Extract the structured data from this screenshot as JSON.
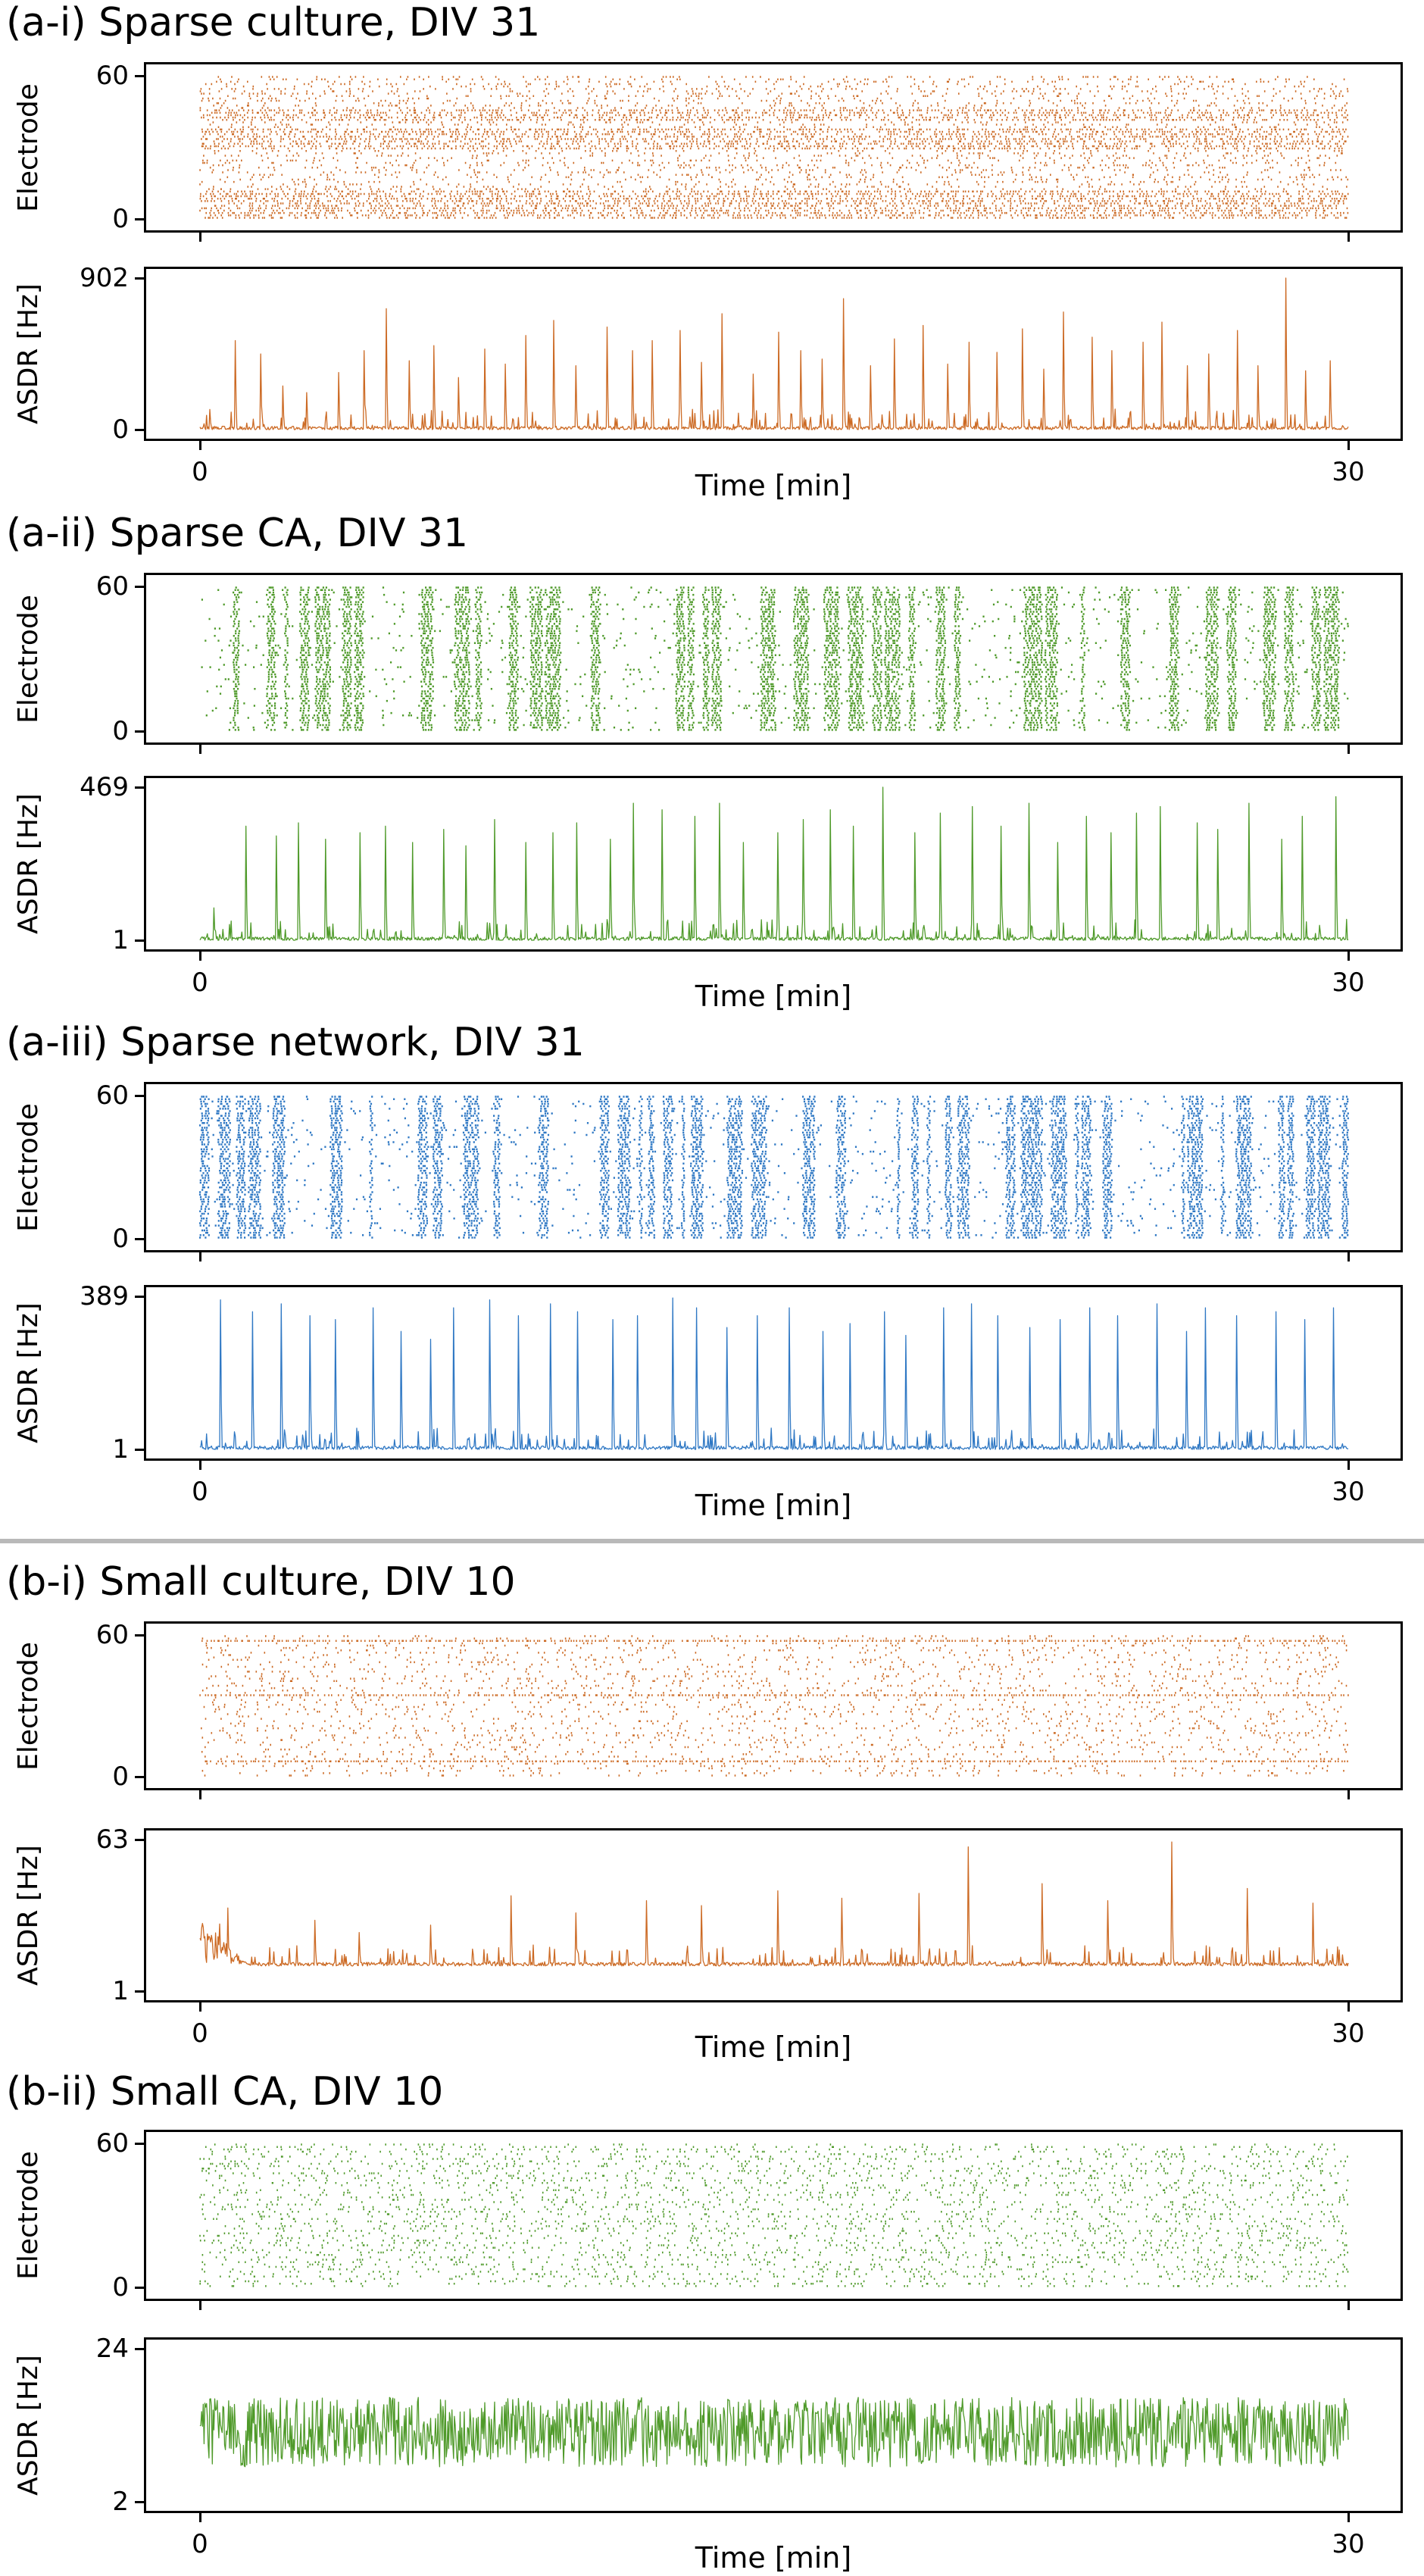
{
  "chart_data": [
    {
      "id": "a-i",
      "title": "(a-i) Sparse culture, DIV 31",
      "color": "#cc6a24",
      "raster": {
        "type": "scatter",
        "ylabel": "Electrode",
        "yticks": [
          "0",
          "60"
        ],
        "ylim": [
          0,
          60
        ],
        "xlim": [
          0,
          30
        ],
        "pattern": "dense-with-horizontal-bands"
      },
      "asdr": {
        "type": "line",
        "ylabel": "ASDR [Hz]",
        "yticks": [
          "0",
          "902"
        ],
        "ylim": [
          0,
          902
        ],
        "xlim": [
          0,
          30
        ],
        "xlabel": "Time [min]",
        "xticks": [
          "0",
          "30"
        ],
        "peaks_hz": [
          120,
          530,
          450,
          260,
          220,
          340,
          470,
          720,
          410,
          500,
          310,
          480,
          390,
          560,
          650,
          380,
          610,
          470,
          530,
          590,
          400,
          690,
          330,
          580,
          470,
          420,
          780,
          380,
          540,
          620,
          390,
          520,
          460,
          600,
          360,
          700,
          550,
          470,
          520,
          640,
          380,
          450,
          590,
          380,
          902,
          350,
          410
        ]
      }
    },
    {
      "id": "a-ii",
      "title": "(a-ii) Sparse CA, DIV 31",
      "color": "#4f9a2a",
      "raster": {
        "type": "scatter",
        "ylabel": "Electrode",
        "yticks": [
          "0",
          "60"
        ],
        "ylim": [
          0,
          60
        ],
        "xlim": [
          0,
          30
        ],
        "pattern": "dense-vertical-bursts"
      },
      "asdr": {
        "type": "line",
        "ylabel": "ASDR [Hz]",
        "yticks": [
          "1",
          "469"
        ],
        "ylim": [
          1,
          469
        ],
        "xlim": [
          0,
          30
        ],
        "xlabel": "Time [min]",
        "xticks": [
          "0",
          "30"
        ],
        "peaks_hz": [
          100,
          350,
          320,
          360,
          310,
          330,
          350,
          300,
          340,
          290,
          370,
          300,
          330,
          360,
          310,
          420,
          400,
          380,
          420,
          300,
          330,
          370,
          400,
          350,
          469,
          330,
          390,
          410,
          350,
          420,
          300,
          380,
          330,
          390,
          410,
          360,
          340,
          420,
          310,
          380,
          440
        ]
      }
    },
    {
      "id": "a-iii",
      "title": "(a-iii) Sparse network, DIV 31",
      "color": "#2f78c4",
      "raster": {
        "type": "scatter",
        "ylabel": "Electrode",
        "yticks": [
          "0",
          "60"
        ],
        "ylim": [
          0,
          60
        ],
        "xlim": [
          0,
          30
        ],
        "pattern": "dense-vertical-bursts"
      },
      "asdr": {
        "type": "line",
        "ylabel": "ASDR [Hz]",
        "yticks": [
          "1",
          "389"
        ],
        "ylim": [
          1,
          389
        ],
        "xlim": [
          0,
          30
        ],
        "xlabel": "Time [min]",
        "xticks": [
          "0",
          "30"
        ],
        "peaks_hz": [
          380,
          350,
          370,
          340,
          330,
          360,
          300,
          280,
          360,
          380,
          340,
          370,
          350,
          330,
          340,
          385,
          360,
          310,
          340,
          360,
          300,
          320,
          350,
          290,
          360,
          370,
          340,
          310,
          330,
          360,
          340,
          370,
          300,
          360,
          340,
          350,
          330,
          360
        ]
      }
    },
    {
      "id": "b-i",
      "title": "(b-i) Small culture, DIV 10",
      "color": "#cc6a24",
      "raster": {
        "type": "scatter",
        "ylabel": "Electrode",
        "yticks": [
          "0",
          "60"
        ],
        "ylim": [
          0,
          60
        ],
        "xlim": [
          0,
          30
        ],
        "pattern": "sparse-with-lines"
      },
      "asdr": {
        "type": "line",
        "ylabel": "ASDR [Hz]",
        "yticks": [
          "1",
          "63"
        ],
        "ylim": [
          1,
          63
        ],
        "xlim": [
          0,
          30
        ],
        "xlabel": "Time [min]",
        "xticks": [
          "0",
          "30"
        ],
        "baseline_hz": 12,
        "peaks_hz": [
          35,
          30,
          25,
          28,
          40,
          33,
          38,
          36,
          42,
          39,
          41,
          60,
          45,
          38,
          62,
          43,
          37
        ]
      }
    },
    {
      "id": "b-ii",
      "title": "(b-ii) Small CA, DIV 10",
      "color": "#4f9a2a",
      "raster": {
        "type": "scatter",
        "ylabel": "Electrode",
        "yticks": [
          "0",
          "60"
        ],
        "ylim": [
          0,
          60
        ],
        "xlim": [
          0,
          30
        ],
        "pattern": "uniform-random"
      },
      "asdr": {
        "type": "line",
        "ylabel": "ASDR [Hz]",
        "yticks": [
          "2",
          "24"
        ],
        "ylim": [
          2,
          24
        ],
        "xlim": [
          0,
          30
        ],
        "xlabel": "Time [min]",
        "xticks": [
          "0",
          "30"
        ],
        "baseline_hz": 12,
        "noise_hz": 5
      }
    }
  ]
}
